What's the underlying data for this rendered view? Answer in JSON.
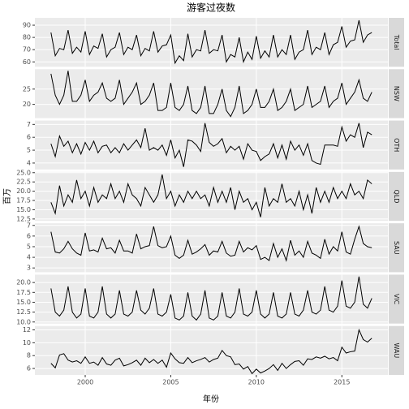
{
  "chart_data": {
    "type": "line",
    "title": "游客过夜数",
    "xlabel": "年份",
    "ylabel": "百万",
    "color": "#000000",
    "grid": true,
    "x": [
      1998,
      1998.25,
      1998.5,
      1998.75,
      1999,
      1999.25,
      1999.5,
      1999.75,
      2000,
      2000.25,
      2000.5,
      2000.75,
      2001,
      2001.25,
      2001.5,
      2001.75,
      2002,
      2002.25,
      2002.5,
      2002.75,
      2003,
      2003.25,
      2003.5,
      2003.75,
      2004,
      2004.25,
      2004.5,
      2004.75,
      2005,
      2005.25,
      2005.5,
      2005.75,
      2006,
      2006.25,
      2006.5,
      2006.75,
      2007,
      2007.25,
      2007.5,
      2007.75,
      2008,
      2008.25,
      2008.5,
      2008.75,
      2009,
      2009.25,
      2009.5,
      2009.75,
      2010,
      2010.25,
      2010.5,
      2010.75,
      2011,
      2011.25,
      2011.5,
      2011.75,
      2012,
      2012.25,
      2012.5,
      2012.75,
      2013,
      2013.25,
      2013.5,
      2013.75,
      2014,
      2014.25,
      2014.5,
      2014.75,
      2015,
      2015.25,
      2015.5,
      2015.75,
      2016,
      2016.25,
      2016.5,
      2016.75
    ],
    "xlim": [
      1997.06,
      2017.69
    ],
    "xticks": [
      2000,
      2005,
      2010,
      2015
    ],
    "facets": [
      {
        "name": "Total",
        "ylim": [
          56,
          96
        ],
        "yticks": [
          60,
          70,
          80,
          90
        ],
        "values": [
          84,
          65,
          71,
          70,
          86,
          67,
          72,
          68,
          85,
          66,
          73,
          71,
          83,
          64,
          70,
          72,
          84,
          66,
          72,
          70,
          82,
          65,
          71,
          69,
          85,
          68,
          73,
          74,
          82,
          59,
          65,
          61,
          83,
          64,
          70,
          69,
          86,
          67,
          70,
          69,
          82,
          60,
          66,
          64,
          80,
          60,
          68,
          62,
          81,
          63,
          69,
          64,
          82,
          64,
          70,
          66,
          82,
          62,
          68,
          70,
          86,
          66,
          72,
          70,
          84,
          66,
          74,
          76,
          89,
          72,
          77,
          78,
          94,
          76,
          82,
          84
        ]
      },
      {
        "name": "NSW",
        "ylim": [
          15.5,
          31.5
        ],
        "yticks": [
          20,
          25
        ],
        "values": [
          30,
          23,
          20,
          23,
          31,
          21,
          21,
          23,
          28,
          21,
          23,
          24,
          27,
          22,
          21,
          22,
          28,
          20,
          22,
          24,
          27,
          20,
          21,
          23,
          27,
          18,
          18,
          19,
          27,
          19,
          18,
          20,
          26,
          18,
          17,
          19,
          26,
          17,
          17,
          20,
          25,
          18,
          16,
          19,
          26,
          17,
          18,
          20,
          25,
          19,
          19,
          21,
          25,
          18,
          19,
          21,
          25,
          18,
          19,
          20,
          26,
          19,
          20,
          21,
          26,
          19,
          21,
          22,
          27,
          20,
          22,
          24,
          28,
          22,
          21,
          24
        ]
      },
      {
        "name": "OTH",
        "ylim": [
          3.5,
          7.3
        ],
        "yticks": [
          4,
          5,
          6,
          7
        ],
        "values": [
          5.5,
          4.5,
          6.1,
          5.3,
          5.7,
          4.8,
          5.5,
          4.7,
          5.6,
          5.0,
          5.7,
          4.8,
          5.3,
          5.4,
          4.8,
          5.2,
          4.8,
          5.5,
          5.0,
          5.4,
          5.8,
          5.2,
          6.7,
          5.0,
          5.2,
          5.0,
          5.4,
          4.6,
          5.8,
          4.4,
          5.0,
          3.7,
          5.8,
          5.7,
          5.4,
          4.9,
          7.1,
          5.6,
          5.3,
          5.5,
          5.9,
          4.8,
          5.3,
          5.0,
          5.3,
          4.3,
          5.5,
          5.0,
          4.9,
          4.2,
          4.5,
          4.7,
          5.5,
          4.4,
          5.4,
          4.3,
          5.7,
          5.0,
          5.4,
          4.6,
          5.5,
          4.2,
          4.0,
          3.9,
          5.4,
          5.4,
          5.4,
          5.3,
          6.8,
          5.7,
          6.2,
          6.0,
          7.1,
          5.2,
          6.4,
          6.2
        ]
      },
      {
        "name": "QLD",
        "ylim": [
          12,
          25.2
        ],
        "yticks": [
          12.5,
          {
            "value": 15,
            "label": "15.0"
          },
          17.5,
          {
            "value": 20,
            "label": "20.0"
          },
          22.5,
          {
            "value": 25,
            "label": "25.0"
          }
        ],
        "values": [
          17,
          14,
          21.5,
          16,
          19,
          17,
          23,
          18,
          20,
          16,
          21,
          17,
          19,
          18,
          22,
          18,
          20,
          17,
          22,
          19,
          18,
          16,
          21,
          19,
          17,
          19,
          24.5,
          18,
          20,
          16,
          19,
          17,
          20,
          18,
          20,
          18,
          19,
          16,
          21,
          17,
          20,
          17,
          21,
          15,
          20,
          17,
          18,
          15,
          17,
          13,
          21,
          16,
          18,
          17,
          22,
          17,
          18,
          16,
          20,
          15,
          19,
          14,
          21,
          17,
          20,
          17,
          21,
          18,
          20,
          18,
          22,
          19,
          20,
          18,
          23,
          22
        ]
      },
      {
        "name": "SAU",
        "ylim": [
          2.6,
          7.2
        ],
        "yticks": [
          3,
          4,
          5,
          6,
          7
        ],
        "values": [
          6.4,
          4.5,
          4.4,
          4.8,
          5.5,
          4.8,
          4.4,
          4.2,
          6.3,
          4.6,
          4.7,
          4.5,
          5.8,
          4.8,
          4.9,
          4.4,
          5.6,
          4.6,
          4.6,
          4.4,
          6.2,
          4.8,
          5.0,
          5.1,
          6.9,
          5.1,
          4.9,
          5.0,
          6.0,
          4.2,
          3.9,
          4.2,
          5.6,
          4.3,
          4.5,
          4.8,
          5.2,
          4.2,
          4.6,
          4.5,
          5.5,
          4.4,
          4.1,
          4.2,
          5.5,
          4.5,
          4.9,
          4.7,
          5.1,
          3.8,
          4.0,
          3.7,
          5.3,
          4.0,
          4.8,
          3.7,
          5.6,
          4.2,
          4.6,
          4.0,
          5.5,
          4.4,
          4.2,
          3.9,
          5.7,
          4.3,
          5.0,
          4.6,
          6.4,
          4.5,
          4.3,
          5.7,
          6.9,
          5.3,
          5.0,
          4.9
        ]
      },
      {
        "name": "VIC",
        "ylim": [
          9.6,
          22
        ],
        "yticks": [
          {
            "value": 10,
            "label": "10.0"
          },
          12.5,
          {
            "value": 15,
            "label": "15.0"
          },
          17.5,
          {
            "value": 20,
            "label": "20.0"
          }
        ],
        "values": [
          18.5,
          12.5,
          11.5,
          13,
          19,
          12.5,
          11,
          12,
          18.5,
          11.5,
          11,
          12.5,
          19,
          12,
          11,
          12,
          18,
          12,
          11.5,
          12.5,
          18,
          13,
          12,
          13.5,
          18.5,
          12,
          11.5,
          12.5,
          17,
          11,
          10.5,
          11.5,
          17.5,
          11.5,
          10.5,
          12,
          18,
          11,
          10.5,
          11.5,
          17.5,
          11.5,
          11,
          12.5,
          18.5,
          12,
          11.5,
          12.5,
          18,
          12,
          11,
          12,
          17.5,
          11.5,
          11,
          12,
          17.5,
          12,
          11.5,
          13,
          18,
          12.5,
          12,
          13,
          19,
          13,
          12.5,
          14,
          20.5,
          14,
          13.5,
          15,
          21.5,
          14.5,
          13.5,
          16
        ]
      },
      {
        "name": "WAU",
        "ylim": [
          5,
          12.6
        ],
        "yticks": [
          6,
          8,
          10,
          12
        ],
        "values": [
          6.8,
          6.1,
          8.1,
          8.3,
          7.3,
          7.0,
          7.2,
          6.8,
          7.8,
          6.8,
          7.0,
          6.5,
          7.7,
          6.7,
          6.5,
          7.3,
          7.6,
          6.4,
          6.6,
          6.9,
          7.3,
          6.5,
          7.6,
          6.9,
          7.4,
          6.8,
          7.3,
          6.2,
          8.4,
          7.5,
          6.9,
          6.8,
          7.7,
          6.9,
          7.2,
          7.4,
          7.7,
          7.0,
          7.4,
          7.6,
          8.8,
          8.0,
          7.8,
          6.6,
          6.7,
          5.9,
          6.3,
          5.2,
          5.9,
          5.3,
          5.6,
          6.0,
          6.6,
          5.7,
          6.8,
          6.0,
          6.6,
          7.1,
          7.2,
          6.5,
          7.5,
          7.4,
          7.8,
          7.6,
          7.9,
          7.5,
          7.7,
          7.2,
          9.3,
          8.4,
          8.6,
          8.7,
          12.0,
          10.5,
          10.1,
          10.7
        ]
      }
    ]
  }
}
